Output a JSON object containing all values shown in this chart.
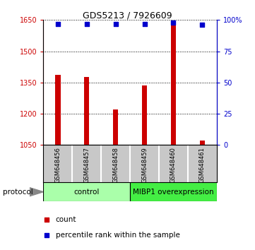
{
  "title": "GDS5213 / 7926609",
  "samples": [
    "GSM648456",
    "GSM648457",
    "GSM648458",
    "GSM648459",
    "GSM648460",
    "GSM648461"
  ],
  "bar_values": [
    1385,
    1375,
    1220,
    1335,
    1640,
    1070
  ],
  "percentile_values": [
    97,
    97,
    97,
    97,
    98,
    96
  ],
  "ylim_left": [
    1050,
    1650
  ],
  "ylim_right": [
    0,
    100
  ],
  "yticks_left": [
    1050,
    1200,
    1350,
    1500,
    1650
  ],
  "yticks_right": [
    0,
    25,
    50,
    75,
    100
  ],
  "ytick_labels_right": [
    "0",
    "25",
    "50",
    "75",
    "100%"
  ],
  "bar_color": "#cc0000",
  "dot_color": "#0000cc",
  "group_labels": [
    "control",
    "MIBP1 overexpression"
  ],
  "group_ranges": [
    [
      0,
      3
    ],
    [
      3,
      6
    ]
  ],
  "group_color_light": "#aaffaa",
  "group_color_bright": "#44ee44",
  "legend_count_color": "#cc0000",
  "legend_dot_color": "#0000cc",
  "bg_color": "#ffffff",
  "label_area_color": "#c8c8c8"
}
